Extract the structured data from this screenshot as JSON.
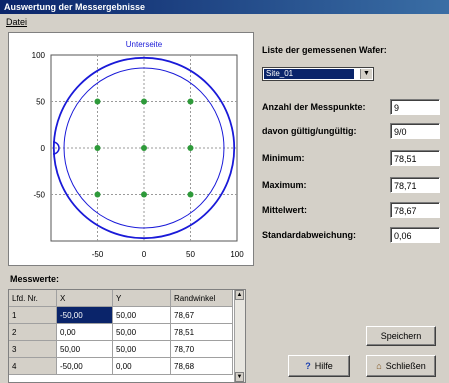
{
  "window": {
    "title": "Auswertung der Messergebnisse"
  },
  "menu": {
    "items": [
      "Datei"
    ]
  },
  "chart_data": {
    "type": "scatter",
    "title": "Unterseite",
    "xlim": [
      -100,
      100
    ],
    "ylim": [
      -100,
      100
    ],
    "x_ticks": [
      "-50",
      "0",
      "50",
      "100"
    ],
    "y_ticks": [
      "100",
      "50",
      "0",
      "-50"
    ],
    "grid": true,
    "points": [
      {
        "x": -50,
        "y": 50
      },
      {
        "x": 0,
        "y": 50
      },
      {
        "x": 50,
        "y": 50
      },
      {
        "x": -50,
        "y": 0
      },
      {
        "x": 0,
        "y": 0
      },
      {
        "x": 50,
        "y": 0
      },
      {
        "x": -50,
        "y": -50
      },
      {
        "x": 0,
        "y": -50
      },
      {
        "x": 50,
        "y": -50
      }
    ],
    "colors": {
      "points": "#2e9a3a",
      "wafer": "#1a1ad8",
      "grid": "#9a9a9a"
    }
  },
  "wafer_list": {
    "label": "Liste der gemessenen Wafer:",
    "selected": "Site_01"
  },
  "stats": {
    "count_label": "Anzahl der Messpunkte:",
    "count_value": "9",
    "valid_label": "davon gültig/ungültig:",
    "valid_value": "9/0",
    "min_label": "Minimum:",
    "min_value": "78,51",
    "max_label": "Maximum:",
    "max_value": "78,71",
    "mean_label": "Mittelwert:",
    "mean_value": "78,67",
    "std_label": "Standardabweichung:",
    "std_value": "0,06"
  },
  "table": {
    "title": "Messwerte:",
    "headers": [
      "Lfd. Nr.",
      "X",
      "Y",
      "Randwinkel"
    ],
    "rows": [
      [
        "1",
        "-50,00",
        "50,00",
        "78,67"
      ],
      [
        "2",
        "0,00",
        "50,00",
        "78,51"
      ],
      [
        "3",
        "50,00",
        "50,00",
        "78,70"
      ],
      [
        "4",
        "-50,00",
        "0,00",
        "78,68"
      ]
    ]
  },
  "buttons": {
    "save": "Speichern",
    "help": "Hilfe",
    "close": "Schließen"
  }
}
